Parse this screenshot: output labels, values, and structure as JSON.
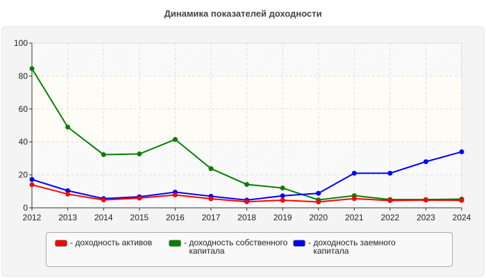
{
  "chart_data": {
    "type": "line",
    "title": "Динамика показателей доходности",
    "xlabel": "",
    "ylabel": "",
    "x": [
      2012,
      2013,
      2014,
      2015,
      2016,
      2017,
      2018,
      2019,
      2020,
      2021,
      2022,
      2023,
      2024
    ],
    "ylim": [
      0,
      100
    ],
    "yticks": [
      0,
      20,
      40,
      60,
      80,
      100
    ],
    "grid": true,
    "legend_position": "bottom",
    "series": [
      {
        "name": "доходность активов",
        "color": "#ff0000",
        "values": [
          14,
          8.3,
          4.8,
          5.9,
          7.8,
          5.5,
          3.7,
          4.6,
          3.6,
          5.6,
          4.4,
          4.7,
          4.5
        ]
      },
      {
        "name": "доходность собственного капитала",
        "color": "#008000",
        "values": [
          84.5,
          49,
          32.3,
          32.7,
          41.5,
          23.8,
          14.2,
          12,
          4.8,
          7.4,
          5,
          5,
          5.3
        ]
      },
      {
        "name": "доходность заемного капитала",
        "color": "#0000ff",
        "values": [
          17.2,
          10.4,
          5.6,
          6.7,
          9.5,
          7,
          4.7,
          7.3,
          8.8,
          21,
          21,
          28,
          34
        ]
      }
    ]
  }
}
